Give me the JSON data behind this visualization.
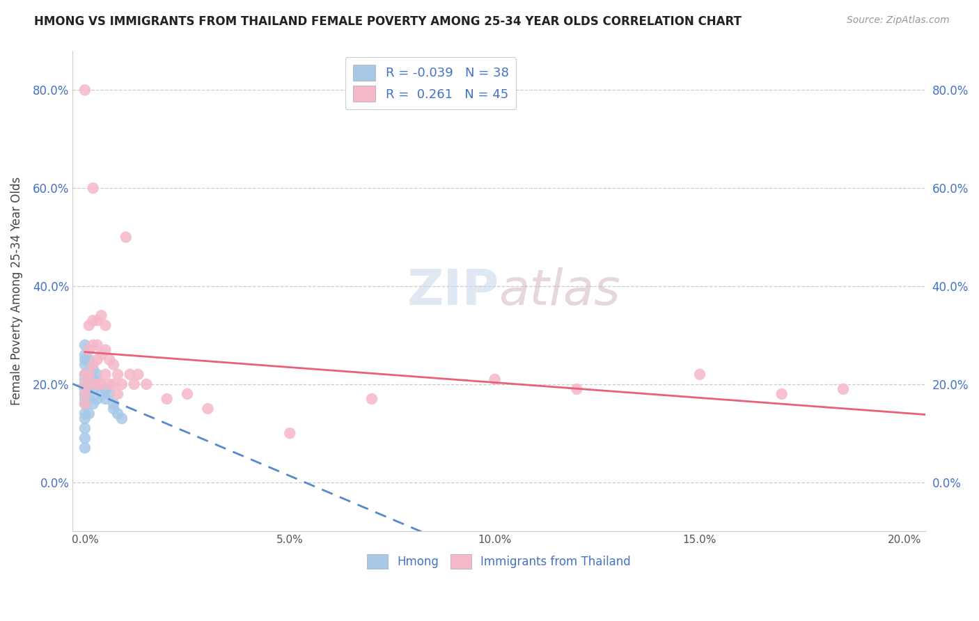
{
  "title": "HMONG VS IMMIGRANTS FROM THAILAND FEMALE POVERTY AMONG 25-34 YEAR OLDS CORRELATION CHART",
  "source": "Source: ZipAtlas.com",
  "ylabel": "Female Poverty Among 25-34 Year Olds",
  "xlim": [
    -0.003,
    0.205
  ],
  "ylim": [
    -0.1,
    0.88
  ],
  "yticks": [
    0.0,
    0.2,
    0.4,
    0.6,
    0.8
  ],
  "xticks": [
    0.0,
    0.05,
    0.1,
    0.15,
    0.2
  ],
  "hmong_color": "#a8c8e8",
  "thailand_color": "#f5b8c8",
  "hmong_line_color": "#5588cc",
  "thailand_line_color": "#e8607a",
  "hmong_R": -0.039,
  "hmong_N": 38,
  "thailand_R": 0.261,
  "thailand_N": 45,
  "hmong_x": [
    0.0,
    0.0,
    0.0,
    0.0,
    0.0,
    0.0,
    0.0,
    0.0,
    0.0,
    0.0,
    0.0,
    0.0,
    0.0,
    0.0,
    0.0,
    0.0,
    0.001,
    0.001,
    0.001,
    0.001,
    0.001,
    0.001,
    0.002,
    0.002,
    0.002,
    0.002,
    0.003,
    0.003,
    0.003,
    0.004,
    0.004,
    0.005,
    0.005,
    0.006,
    0.007,
    0.007,
    0.008,
    0.009
  ],
  "hmong_y": [
    0.28,
    0.26,
    0.25,
    0.24,
    0.22,
    0.21,
    0.2,
    0.19,
    0.18,
    0.17,
    0.16,
    0.14,
    0.13,
    0.11,
    0.09,
    0.07,
    0.25,
    0.22,
    0.2,
    0.19,
    0.17,
    0.14,
    0.23,
    0.21,
    0.19,
    0.16,
    0.22,
    0.2,
    0.17,
    0.2,
    0.18,
    0.19,
    0.17,
    0.18,
    0.16,
    0.15,
    0.14,
    0.13
  ],
  "thailand_x": [
    0.0,
    0.0,
    0.0,
    0.0,
    0.0,
    0.001,
    0.001,
    0.001,
    0.002,
    0.002,
    0.002,
    0.002,
    0.002,
    0.003,
    0.003,
    0.003,
    0.003,
    0.004,
    0.004,
    0.004,
    0.005,
    0.005,
    0.005,
    0.006,
    0.006,
    0.007,
    0.007,
    0.008,
    0.008,
    0.009,
    0.01,
    0.011,
    0.012,
    0.013,
    0.015,
    0.02,
    0.025,
    0.03,
    0.05,
    0.07,
    0.1,
    0.12,
    0.15,
    0.17,
    0.185
  ],
  "thailand_y": [
    0.8,
    0.22,
    0.2,
    0.18,
    0.16,
    0.32,
    0.27,
    0.22,
    0.6,
    0.33,
    0.28,
    0.24,
    0.2,
    0.33,
    0.28,
    0.25,
    0.2,
    0.34,
    0.26,
    0.2,
    0.32,
    0.27,
    0.22,
    0.25,
    0.2,
    0.24,
    0.2,
    0.22,
    0.18,
    0.2,
    0.5,
    0.22,
    0.2,
    0.22,
    0.2,
    0.17,
    0.18,
    0.15,
    0.1,
    0.17,
    0.21,
    0.19,
    0.22,
    0.18,
    0.19
  ]
}
